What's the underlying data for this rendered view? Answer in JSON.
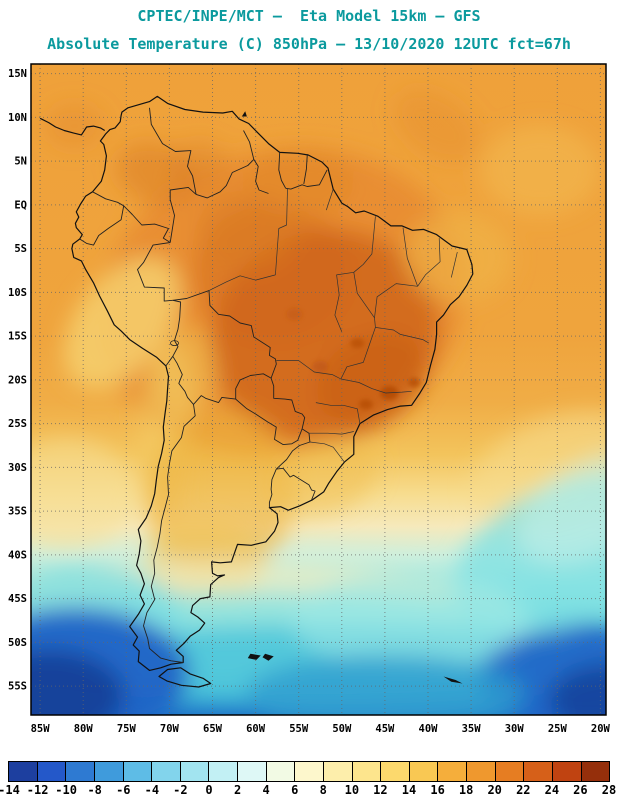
{
  "header": {
    "title_line1": "CPTEC/INPE/MCT –  Eta Model 15km – GFS",
    "title_line2": "Absolute Temperature (C) 850hPa – 13/10/2020 12UTC fct=67h",
    "title_color": "#0b9a9e"
  },
  "map": {
    "lat_tick_labels": [
      "15N",
      "10N",
      "5N",
      "EQ",
      "5S",
      "10S",
      "15S",
      "20S",
      "25S",
      "30S",
      "35S",
      "40S",
      "45S",
      "50S",
      "55S"
    ],
    "lon_tick_labels": [
      "85W",
      "80W",
      "75W",
      "70W",
      "65W",
      "60W",
      "55W",
      "50W",
      "45W",
      "40W",
      "35W",
      "30W",
      "25W",
      "20W"
    ]
  },
  "colorbar": {
    "tick_labels": [
      "-14",
      "-12",
      "-10",
      "-8",
      "-6",
      "-4",
      "-2",
      "0",
      "2",
      "4",
      "6",
      "8",
      "10",
      "12",
      "14",
      "16",
      "18",
      "20",
      "22",
      "24",
      "26",
      "28"
    ],
    "segment_colors": [
      "#1d3f9f",
      "#2458c9",
      "#2e7ad2",
      "#3f9bdc",
      "#5ebce6",
      "#82d4ec",
      "#a2e4f0",
      "#c2f0f4",
      "#def8f6",
      "#f2fae4",
      "#fdf7cc",
      "#fdeeab",
      "#fde58d",
      "#fcd96d",
      "#f9c853",
      "#f5ae3b",
      "#ef982e",
      "#e67d22",
      "#d66019",
      "#c04311",
      "#952f0b"
    ]
  }
}
